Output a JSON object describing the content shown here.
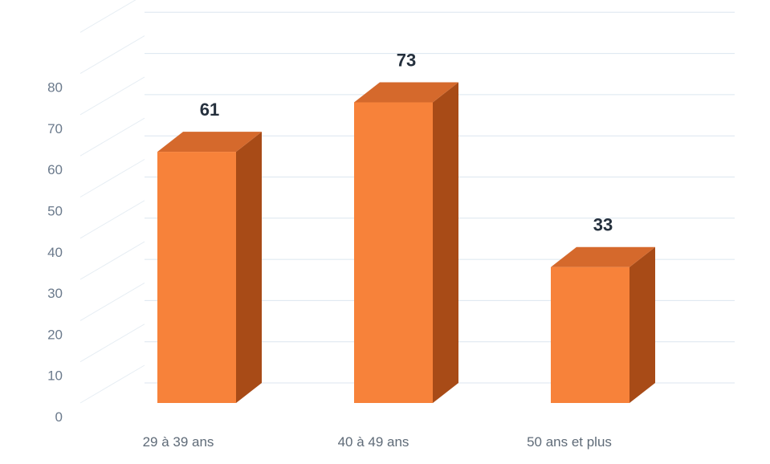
{
  "chart_data": {
    "type": "bar",
    "categories": [
      "29 à 39 ans",
      "40 à 49 ans",
      "50 ans et plus"
    ],
    "values": [
      61,
      73,
      33
    ],
    "data_labels": [
      "61",
      "73",
      "33"
    ],
    "y_ticks": [
      "0",
      "10",
      "20",
      "30",
      "40",
      "50",
      "60",
      "70",
      "80"
    ],
    "ylim": [
      0,
      90
    ],
    "grid": true,
    "style": "3d",
    "colors": {
      "front": "#f7823a",
      "top": "#d5692c",
      "side": "#a84b17",
      "grid": "#dce6ef",
      "axis_text": "#6b7a8c"
    }
  }
}
